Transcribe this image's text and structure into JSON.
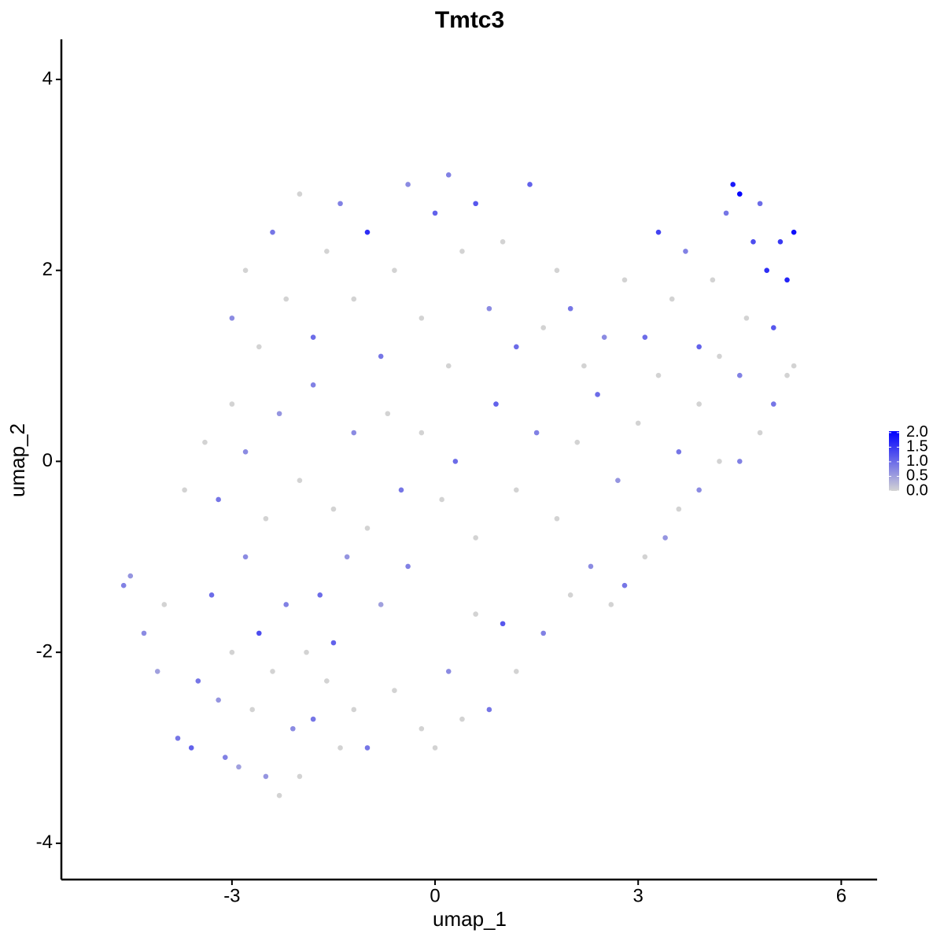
{
  "chart_data": {
    "type": "scatter",
    "title": "Tmtc3",
    "x_label": "umap_1",
    "y_label": "umap_2",
    "xlim": [
      -5.52,
      6.53
    ],
    "ylim": [
      -4.38,
      4.42
    ],
    "xticks": [
      -3,
      0,
      3,
      6
    ],
    "yticks": [
      -4,
      -2,
      0,
      2,
      4
    ],
    "color_range": [
      "#D3D3D3",
      "#0000FF"
    ],
    "color_lim": [
      0,
      2.05
    ],
    "color_ticks": [
      {
        "value": 0,
        "label": "0.0"
      },
      {
        "value": 0.5,
        "label": "0.5"
      },
      {
        "value": 1,
        "label": "1.0"
      },
      {
        "value": 1.5,
        "label": "1.5"
      },
      {
        "value": 2,
        "label": "2.0"
      }
    ],
    "x": [
      -4.6,
      -4.5,
      -4.3,
      -4.1,
      -4.0,
      -3.8,
      -3.6,
      -3.5,
      -3.3,
      -3.2,
      -3.1,
      -3.0,
      -2.9,
      -2.8,
      -2.7,
      -2.6,
      -2.5,
      -2.4,
      -2.3,
      -2.2,
      -2.1,
      -2.0,
      -1.9,
      -1.8,
      -1.7,
      -1.6,
      -1.5,
      -1.4,
      -1.3,
      -1.2,
      -1.0,
      -0.8,
      -0.6,
      -0.4,
      -0.2,
      0,
      0.2,
      0.4,
      0.6,
      0.8,
      1.0,
      1.2,
      1.6,
      2.0,
      2.3,
      2.6,
      2.8,
      3.1,
      3.4,
      3.6,
      3.9,
      4.2,
      4.5,
      4.8,
      5.0,
      5.2,
      -3.7,
      -3.4,
      -3.2,
      -3.0,
      -2.8,
      -2.5,
      -2.3,
      -2.0,
      -1.8,
      -1.5,
      -1.2,
      -1.0,
      -0.7,
      -0.5,
      -0.2,
      0.1,
      0.3,
      0.6,
      0.9,
      1.2,
      1.5,
      1.8,
      2.1,
      2.4,
      2.7,
      3.0,
      3.3,
      3.6,
      3.9,
      -3.0,
      -2.8,
      -2.6,
      -2.4,
      -2.2,
      -2.0,
      -1.8,
      -1.6,
      -1.4,
      -1.2,
      -1.0,
      -0.8,
      -0.6,
      -0.4,
      -0.2,
      0,
      0.2,
      0.2,
      0.4,
      0.6,
      0.8,
      1.0,
      1.2,
      1.4,
      1.6,
      1.8,
      2.0,
      2.2,
      2.5,
      2.8,
      3.1,
      3.3,
      3.5,
      3.7,
      3.9,
      4.1,
      4.3,
      4.4,
      4.5,
      4.6,
      4.7,
      4.8,
      4.9,
      5.0,
      5.1,
      5.2,
      5.3,
      5.3,
      4.5,
      4.2
    ],
    "y": [
      -1.3,
      -1.2,
      -1.8,
      -2.2,
      -1.5,
      -2.9,
      -3.0,
      -2.3,
      -1.4,
      -2.5,
      -3.1,
      -2.0,
      -3.2,
      -1.0,
      -2.6,
      -1.8,
      -3.3,
      -2.2,
      -3.5,
      -1.5,
      -2.8,
      -3.3,
      -2.0,
      -2.7,
      -1.4,
      -2.3,
      -1.9,
      -3.0,
      -1.0,
      -2.6,
      -3.0,
      -1.5,
      -2.4,
      -1.1,
      -2.8,
      -3.0,
      -2.2,
      -2.7,
      -1.6,
      -2.6,
      -1.7,
      -2.2,
      -1.8,
      -1.4,
      -1.1,
      -1.5,
      -1.3,
      -1.0,
      -0.8,
      -0.5,
      -0.3,
      0,
      0,
      0.3,
      0.6,
      0.9,
      -0.3,
      0.2,
      -0.4,
      0.6,
      0.1,
      -0.6,
      0.5,
      -0.2,
      0.8,
      -0.5,
      0.3,
      -0.7,
      0.5,
      -0.3,
      0.3,
      -0.4,
      0.0,
      -0.8,
      0.6,
      -0.3,
      0.3,
      -0.6,
      0.2,
      0.7,
      -0.2,
      0.4,
      0.9,
      0.1,
      0.6,
      1.5,
      2.0,
      1.2,
      2.4,
      1.7,
      2.8,
      1.3,
      2.2,
      2.7,
      1.7,
      2.4,
      1.1,
      2.0,
      2.9,
      1.5,
      2.6,
      3.0,
      1.0,
      2.2,
      2.7,
      1.6,
      2.3,
      1.2,
      2.9,
      1.4,
      2.0,
      1.6,
      1.0,
      1.3,
      1.9,
      1.3,
      2.4,
      1.7,
      2.2,
      1.2,
      1.9,
      2.6,
      2.9,
      2.8,
      1.5,
      2.3,
      2.7,
      2.0,
      1.4,
      2.3,
      1.9,
      2.4,
      1.0,
      0.9,
      1.1
    ],
    "values": [
      0.8,
      0.6,
      0.7,
      0.5,
      0,
      0.9,
      1.1,
      0.9,
      1.0,
      0.6,
      0.8,
      0,
      0.5,
      0.7,
      0,
      1.3,
      0.6,
      0,
      0,
      0.8,
      0.7,
      0,
      0,
      0.9,
      1.0,
      0,
      1.1,
      0,
      0.6,
      0,
      0.9,
      0.5,
      0,
      0.8,
      0,
      0,
      0.7,
      0,
      0,
      0.9,
      1.2,
      0,
      0.8,
      0,
      0.7,
      0,
      0.9,
      0,
      0.6,
      0,
      0.7,
      0,
      0.8,
      0,
      0.9,
      0,
      0,
      0,
      0.9,
      0,
      0.7,
      0,
      0.6,
      0,
      0.8,
      0,
      0.7,
      0,
      0,
      0.9,
      0,
      0,
      1.0,
      0,
      1.1,
      0,
      0.8,
      0,
      0,
      1.0,
      0.6,
      0,
      0,
      0.9,
      0,
      0.7,
      0,
      0,
      0.9,
      0,
      0,
      1.0,
      0,
      0.8,
      0,
      1.6,
      0.9,
      0,
      0.7,
      0,
      1.1,
      0.8,
      0,
      0,
      1.2,
      0.7,
      0,
      1.0,
      1.1,
      0,
      0,
      0.9,
      0,
      0.7,
      0,
      1.0,
      1.4,
      0,
      0.8,
      1.1,
      0,
      0.9,
      1.8,
      2.0,
      0,
      1.3,
      1.0,
      1.6,
      1.2,
      1.5,
      1.7,
      1.9,
      0,
      0.8,
      0
    ]
  }
}
